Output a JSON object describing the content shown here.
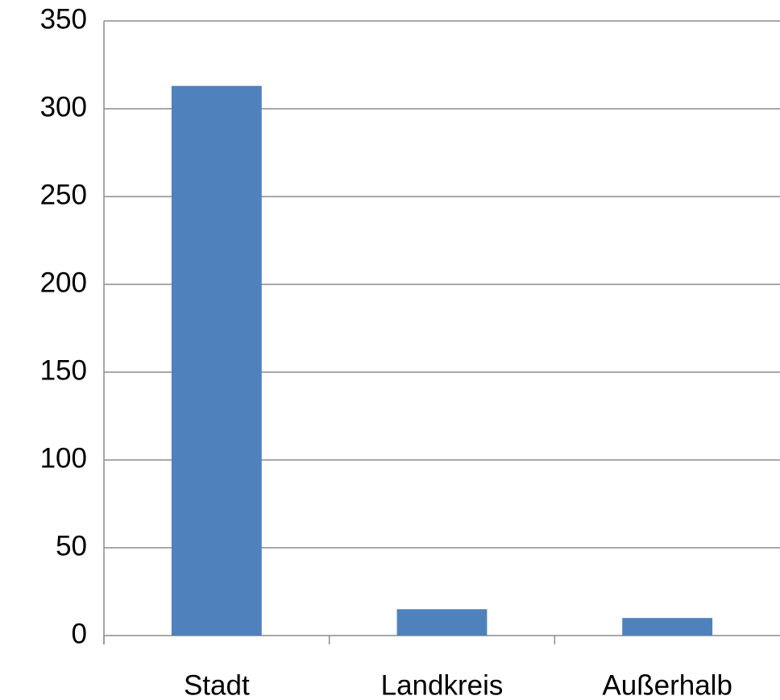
{
  "chart_data": {
    "type": "bar",
    "categories": [
      "Stadt",
      "Landkreis",
      "Außerhalb"
    ],
    "values": [
      313,
      15,
      10
    ],
    "color": "#4f81bd",
    "ylim": [
      0,
      350
    ],
    "yticks": [
      0,
      50,
      100,
      150,
      200,
      250,
      300,
      350
    ],
    "grid": true
  }
}
